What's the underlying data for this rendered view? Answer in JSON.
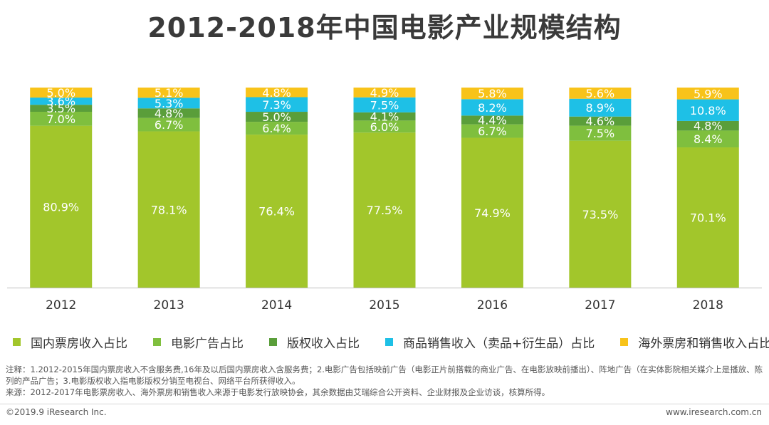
{
  "chart_data": {
    "type": "bar",
    "stacked": true,
    "normalized": true,
    "title": "2012-2018年中国电影产业规模结构",
    "categories": [
      "2012",
      "2013",
      "2014",
      "2015",
      "2016",
      "2017",
      "2018"
    ],
    "series": [
      {
        "name": "国内票房收入占比",
        "color": "#a2c62b",
        "values": [
          80.9,
          78.1,
          76.4,
          77.5,
          74.9,
          73.5,
          70.1
        ],
        "labels": [
          "80.9%",
          "78.1%",
          "76.4%",
          "77.5%",
          "74.9%",
          "73.5%",
          "70.1%"
        ]
      },
      {
        "name": "电影广告占比",
        "color": "#7fbf3e",
        "values": [
          7.0,
          6.7,
          6.4,
          6.0,
          6.7,
          7.5,
          8.4
        ],
        "labels": [
          "7.0%",
          "6.7%",
          "6.4%",
          "6.0%",
          "6.7%",
          "7.5%",
          "8.4%"
        ]
      },
      {
        "name": "版权收入占比",
        "color": "#5a9e3a",
        "values": [
          3.5,
          4.8,
          5.0,
          4.1,
          4.4,
          4.6,
          4.8
        ],
        "labels": [
          "3.5%",
          "4.8%",
          "5.0%",
          "4.1%",
          "4.4%",
          "4.6%",
          "4.8%"
        ]
      },
      {
        "name": "商品销售收入（卖品+衍生品）占比",
        "color": "#1ec0e6",
        "values": [
          3.6,
          5.3,
          7.3,
          7.5,
          8.2,
          8.9,
          10.8
        ],
        "labels": [
          "3.6%",
          "5.3%",
          "7.3%",
          "7.5%",
          "8.2%",
          "8.9%",
          "10.8%"
        ]
      },
      {
        "name": "海外票房和销售收入占比",
        "color": "#f8c31a",
        "values": [
          5.0,
          5.1,
          4.8,
          4.9,
          5.8,
          5.6,
          5.9
        ],
        "labels": [
          "5.0%",
          "5.1%",
          "4.8%",
          "4.9%",
          "5.8%",
          "5.6%",
          "5.9%"
        ]
      }
    ]
  },
  "note": "注释：1.2012-2015年国内票房收入不含服务费,16年及以后国内票房收入含服务费；2.电影广告包括映前广告（电影正片前搭载的商业广告、在电影放映前播出）、阵地广告（在实体影院相关媒介上是播放、陈列的产品广告；3.电影版权收入指电影版权分销至电视台、网络平台所获得收入。",
  "source": "来源：2012-2017年电影票房收入、海外票房和销售收入来源于电影发行放映协会，其余数据由艾瑞综合公开资料、企业财报及企业访谈，核算所得。",
  "copyright": "©2019.9 iResearch Inc.",
  "website": "www.iresearch.com.cn"
}
